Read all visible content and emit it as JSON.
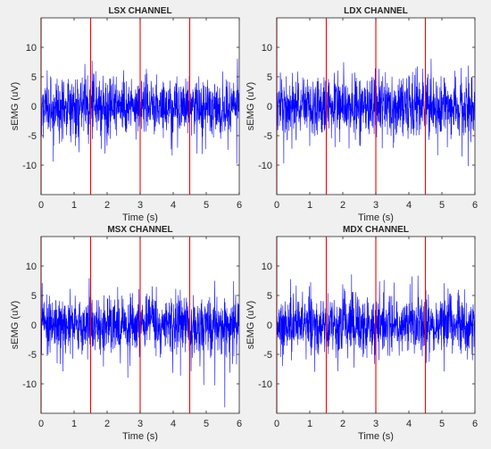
{
  "figure": {
    "background": "#f0f0f0"
  },
  "chart_data": [
    {
      "type": "line",
      "title": "LSX CHANNEL",
      "xlabel": "Time (s)",
      "ylabel": "sEMG (uV)",
      "xlim": [
        0,
        6
      ],
      "ylim": [
        -15,
        15
      ],
      "xticks": [
        "0",
        "1",
        "2",
        "3",
        "4",
        "5",
        "6"
      ],
      "yticks": [
        "-10",
        "-5",
        "0",
        "5",
        "10"
      ],
      "grid": false,
      "series_color": "#0000ff",
      "marker_color": "#ff0000",
      "markers_x": [
        0,
        1.5,
        3,
        4.5
      ],
      "signal": {
        "peak": 13.5,
        "typical_amplitude": 4
      }
    },
    {
      "type": "line",
      "title": "LDX CHANNEL",
      "xlabel": "Time (s)",
      "ylabel": "sEMG (uV)",
      "xlim": [
        0,
        6
      ],
      "ylim": [
        -15,
        15
      ],
      "xticks": [
        "0",
        "1",
        "2",
        "3",
        "4",
        "5",
        "6"
      ],
      "yticks": [
        "-10",
        "-5",
        "0",
        "5",
        "10"
      ],
      "grid": false,
      "series_color": "#0000ff",
      "marker_color": "#ff0000",
      "markers_x": [
        0,
        1.5,
        3,
        4.5
      ],
      "signal": {
        "peak": 13,
        "typical_amplitude": 4
      }
    },
    {
      "type": "line",
      "title": "MSX CHANNEL",
      "xlabel": "Time (s)",
      "ylabel": "sEMG (uV)",
      "xlim": [
        0,
        6
      ],
      "ylim": [
        -15,
        15
      ],
      "xticks": [
        "0",
        "1",
        "2",
        "3",
        "4",
        "5",
        "6"
      ],
      "yticks": [
        "-10",
        "-5",
        "0",
        "5",
        "10"
      ],
      "grid": false,
      "series_color": "#0000ff",
      "marker_color": "#ff0000",
      "markers_x": [
        0,
        1.5,
        3,
        4.5
      ],
      "signal": {
        "peak": 14,
        "typical_amplitude": 4
      }
    },
    {
      "type": "line",
      "title": "MDX CHANNEL",
      "xlabel": "Time (s)",
      "ylabel": "sEMG (uV)",
      "xlim": [
        0,
        6
      ],
      "ylim": [
        -15,
        15
      ],
      "xticks": [
        "0",
        "1",
        "2",
        "3",
        "4",
        "5",
        "6"
      ],
      "yticks": [
        "-10",
        "-5",
        "0",
        "5",
        "10"
      ],
      "grid": false,
      "series_color": "#0000ff",
      "marker_color": "#ff0000",
      "markers_x": [
        0,
        1.5,
        3,
        4.5
      ],
      "signal": {
        "peak": 14,
        "typical_amplitude": 4
      }
    }
  ]
}
